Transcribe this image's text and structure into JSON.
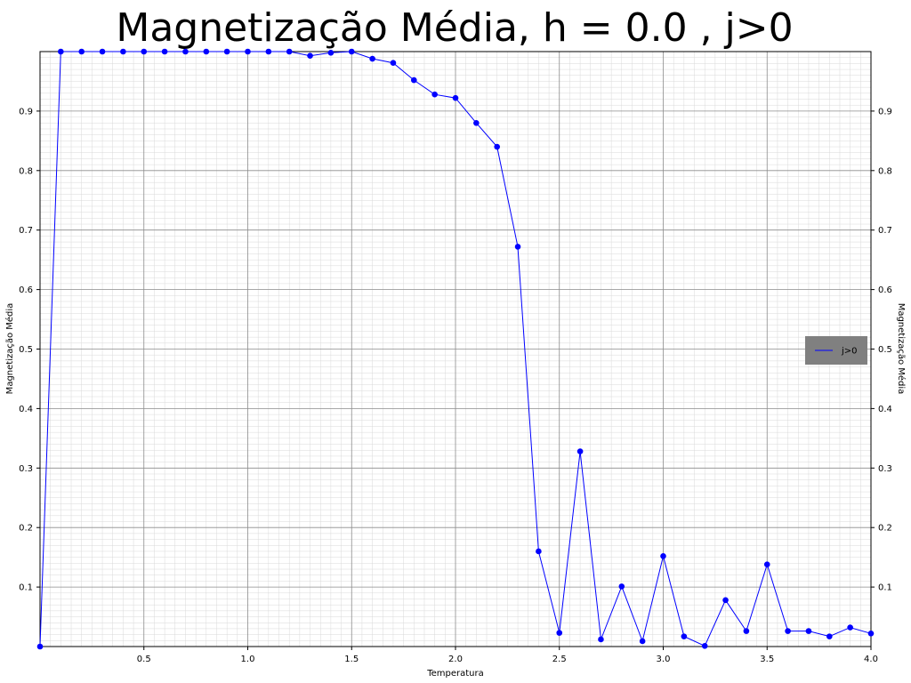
{
  "chart_data": {
    "type": "line",
    "title": "Magnetização Média, h = 0.0 , j>0",
    "xlabel": "Temperatura",
    "ylabel": "Magnetização Média",
    "ylabel_right": "Magnetização Média",
    "xlim": [
      0.0,
      4.0
    ],
    "ylim": [
      0.0,
      1.0
    ],
    "x_ticks": [
      "0.5",
      "1.0",
      "1.5",
      "2.0",
      "2.5",
      "3.0",
      "3.5",
      "4.0"
    ],
    "y_ticks": [
      "0.1",
      "0.2",
      "0.3",
      "0.4",
      "0.5",
      "0.6",
      "0.7",
      "0.8",
      "0.9"
    ],
    "grid": true,
    "minor_grid": true,
    "legend": {
      "position": "right",
      "entries": [
        "j>0"
      ]
    },
    "series": [
      {
        "name": "j>0",
        "color": "#0000ff",
        "x": [
          0.0,
          0.1,
          0.2,
          0.3,
          0.4,
          0.5,
          0.6,
          0.7,
          0.8,
          0.9,
          1.0,
          1.1,
          1.2,
          1.3,
          1.4,
          1.5,
          1.6,
          1.7,
          1.8,
          1.9,
          2.0,
          2.1,
          2.2,
          2.3,
          2.4,
          2.5,
          2.6,
          2.7,
          2.8,
          2.9,
          3.0,
          3.1,
          3.2,
          3.3,
          3.4,
          3.5,
          3.6,
          3.7,
          3.8,
          3.9,
          4.0
        ],
        "y": [
          0.0,
          1.0,
          1.0,
          1.0,
          1.0,
          1.0,
          1.0,
          1.0,
          1.0,
          1.0,
          1.0,
          1.0,
          1.0,
          0.993,
          0.998,
          1.0,
          0.988,
          0.981,
          0.952,
          0.928,
          0.922,
          0.88,
          0.84,
          0.672,
          0.16,
          0.023,
          0.328,
          0.012,
          0.101,
          0.009,
          0.152,
          0.017,
          0.001,
          0.078,
          0.026,
          0.138,
          0.026,
          0.026,
          0.017,
          0.032,
          0.022
        ]
      }
    ]
  }
}
